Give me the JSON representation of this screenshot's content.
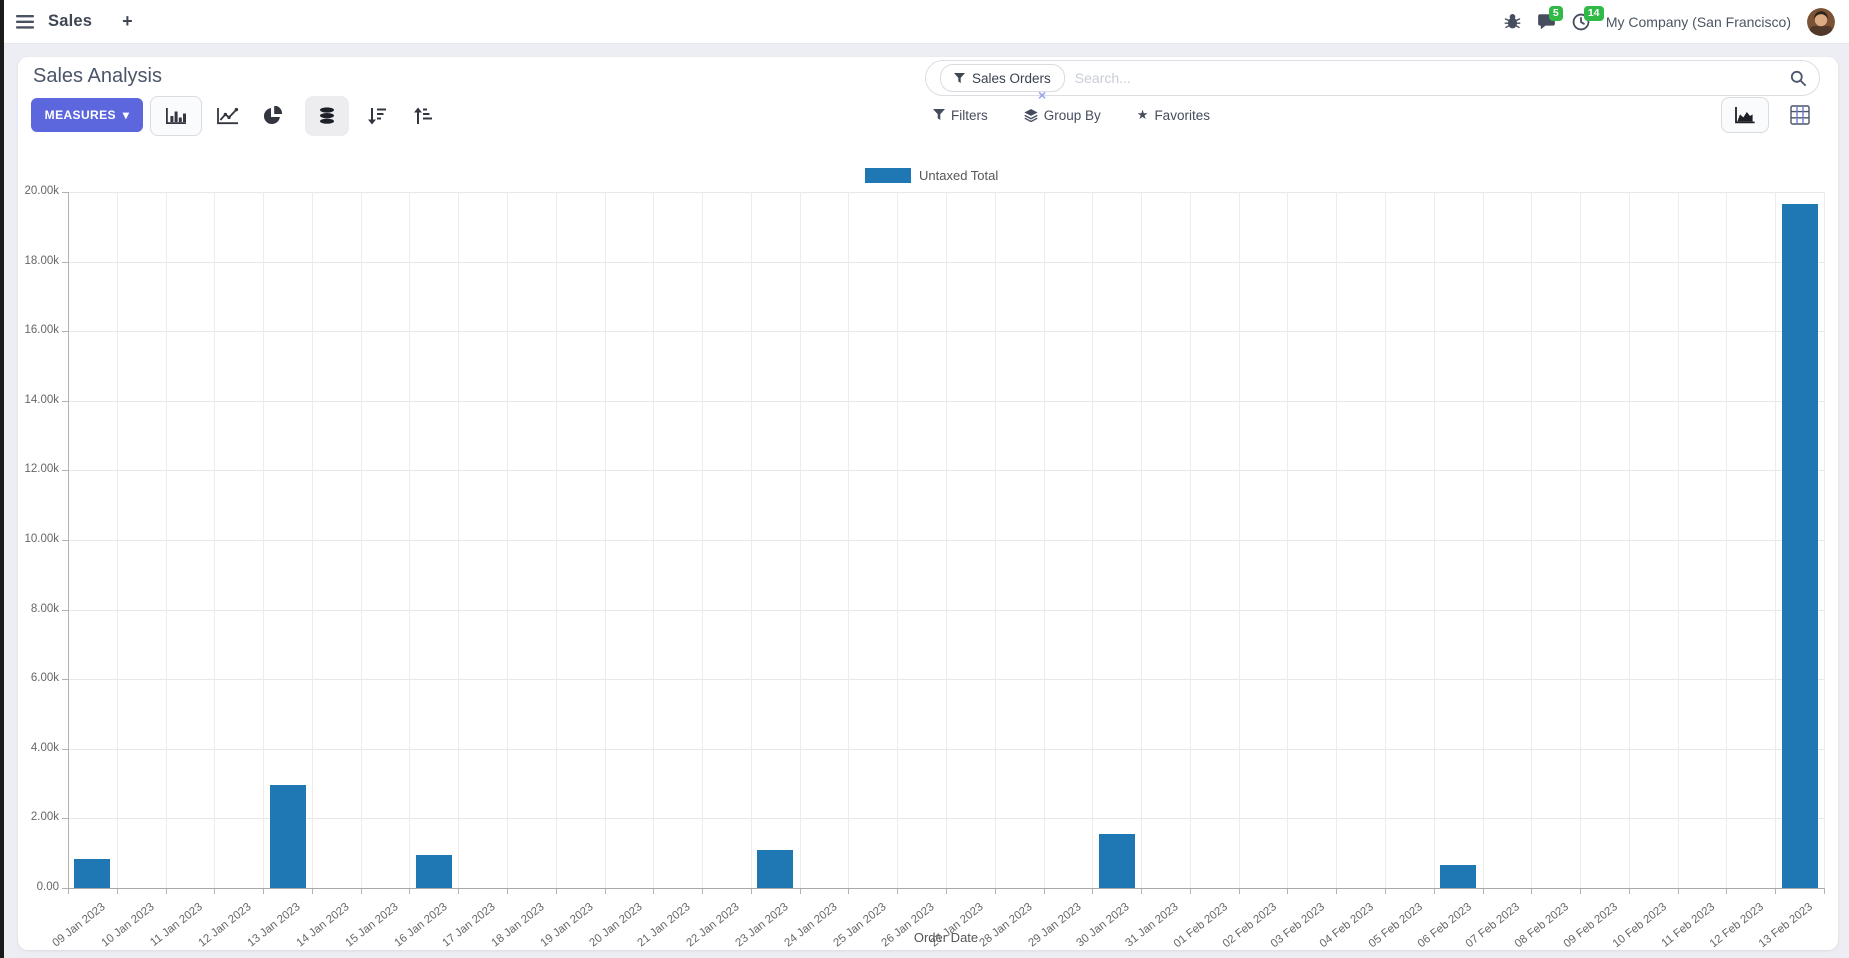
{
  "navbar": {
    "app_name": "Sales",
    "messages_badge": "5",
    "activities_badge": "14",
    "company": "My Company (San Francisco)"
  },
  "icons": {
    "plus": "+",
    "caret_down": "▾",
    "close": "×",
    "star": "★"
  },
  "control_panel": {
    "title": "Sales Analysis",
    "measures_label": "MEASURES",
    "filters_label": "Filters",
    "group_by_label": "Group By",
    "favorites_label": "Favorites",
    "search_facet": "Sales Orders",
    "search_placeholder": "Search..."
  },
  "colors": {
    "bar": "#1f77b4",
    "primary_button": "#5c67de",
    "badge_green": "#30b946",
    "grid": "#e8e8e8",
    "axis": "#b2b2b2",
    "tick_text": "#666666"
  },
  "chart_data": {
    "type": "bar",
    "title": "",
    "xlabel": "Order Date",
    "ylabel": "",
    "ylim": [
      0,
      20000
    ],
    "ytick_step": 2000,
    "ytick_labels": [
      "0.00",
      "2.00k",
      "4.00k",
      "6.00k",
      "8.00k",
      "10.00k",
      "12.00k",
      "14.00k",
      "16.00k",
      "18.00k",
      "20.00k"
    ],
    "grid": true,
    "legend_position": "top",
    "categories": [
      "09 Jan 2023",
      "10 Jan 2023",
      "11 Jan 2023",
      "12 Jan 2023",
      "13 Jan 2023",
      "14 Jan 2023",
      "15 Jan 2023",
      "16 Jan 2023",
      "17 Jan 2023",
      "18 Jan 2023",
      "19 Jan 2023",
      "20 Jan 2023",
      "21 Jan 2023",
      "22 Jan 2023",
      "23 Jan 2023",
      "24 Jan 2023",
      "25 Jan 2023",
      "26 Jan 2023",
      "27 Jan 2023",
      "28 Jan 2023",
      "29 Jan 2023",
      "30 Jan 2023",
      "31 Jan 2023",
      "01 Feb 2023",
      "02 Feb 2023",
      "03 Feb 2023",
      "04 Feb 2023",
      "05 Feb 2023",
      "06 Feb 2023",
      "07 Feb 2023",
      "08 Feb 2023",
      "09 Feb 2023",
      "10 Feb 2023",
      "11 Feb 2023",
      "12 Feb 2023",
      "13 Feb 2023"
    ],
    "series": [
      {
        "name": "Untaxed Total",
        "color": "#1f77b4",
        "values": [
          830,
          0,
          0,
          0,
          2950,
          0,
          0,
          950,
          0,
          0,
          0,
          0,
          0,
          0,
          1080,
          0,
          0,
          0,
          0,
          0,
          0,
          1550,
          0,
          0,
          0,
          0,
          0,
          0,
          650,
          0,
          0,
          0,
          0,
          0,
          0,
          19650
        ]
      }
    ]
  }
}
